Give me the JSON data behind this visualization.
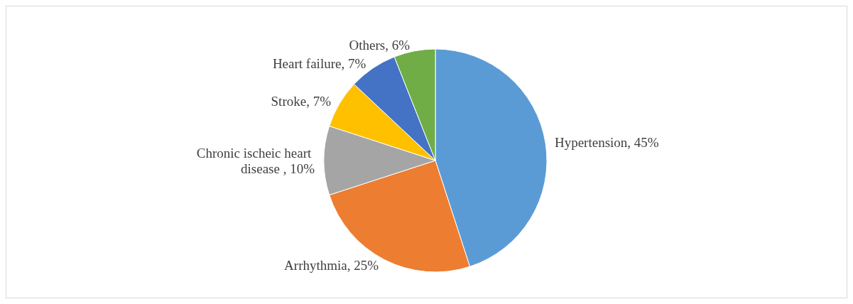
{
  "chart_data": {
    "type": "pie",
    "categories": [
      "Hypertension",
      "Arrhythmia",
      "Chronic ischeic heart disease ",
      "Stroke",
      "Heart failure",
      "Others"
    ],
    "values": [
      45,
      25,
      10,
      7,
      7,
      6
    ],
    "value_labels": [
      "45%",
      "25%",
      "10%",
      "7%",
      "7%",
      "6%"
    ],
    "colors": [
      "#5b9bd5",
      "#ed7d31",
      "#a5a5a5",
      "#ffc000",
      "#4472c4",
      "#70ad47"
    ],
    "legend": false
  }
}
